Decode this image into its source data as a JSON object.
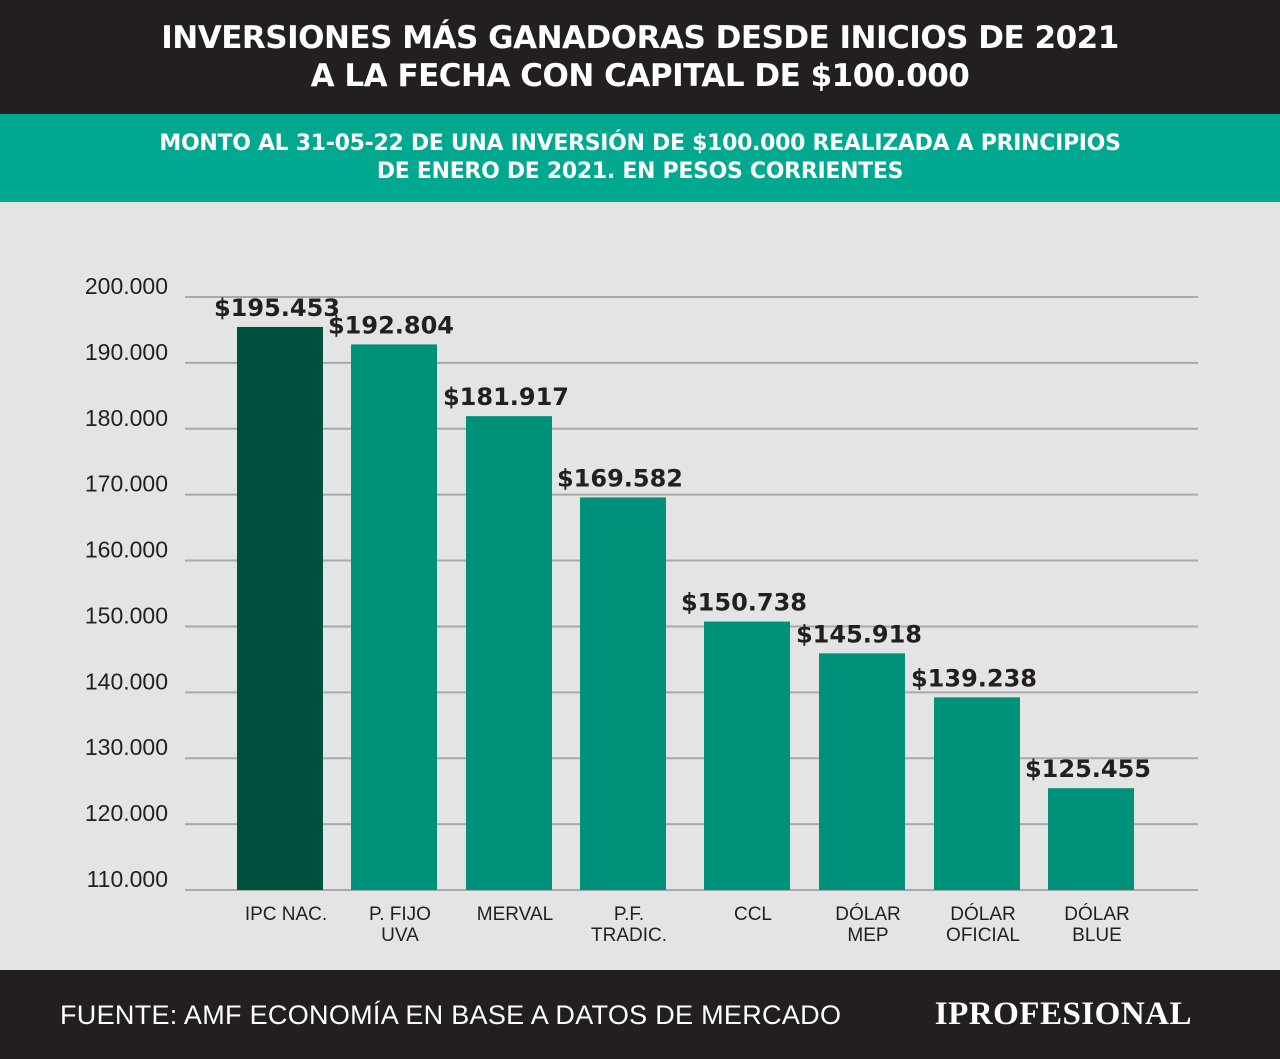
{
  "header": {
    "title_line1": "INVERSIONES MÁS GANADORAS DESDE INICIOS DE 2021",
    "title_line2": "A LA FECHA CON CAPITAL DE $100.000"
  },
  "subheader": {
    "line1": "MONTO AL 31-05-22 DE UNA INVERSIÓN DE $100.000 REALIZADA A PRINCIPIOS",
    "line2": "DE ENERO DE 2021. EN PESOS CORRIENTES"
  },
  "chart_data": {
    "type": "bar",
    "categories": [
      [
        "IPC NAC."
      ],
      [
        "P. FIJO",
        "UVA"
      ],
      [
        "MERVAL"
      ],
      [
        "P.F.",
        "TRADIC."
      ],
      [
        "CCL"
      ],
      [
        "DÓLAR",
        "MEP"
      ],
      [
        "DÓLAR",
        "OFICIAL"
      ],
      [
        "DÓLAR",
        "BLUE"
      ]
    ],
    "values": [
      195453,
      192804,
      181917,
      169582,
      150738,
      145918,
      139238,
      125455
    ],
    "value_labels": [
      "$195.453",
      "$192.804",
      "$181.917",
      "$169.582",
      "$150.738",
      "$145.918",
      "$139.238",
      "$125.455"
    ],
    "bar_colors": [
      "#00503f",
      "#00917a",
      "#00917a",
      "#00917a",
      "#00917a",
      "#00917a",
      "#00917a",
      "#00917a"
    ],
    "ylim": [
      110000,
      200000
    ],
    "yticks": [
      110000,
      120000,
      130000,
      140000,
      150000,
      160000,
      170000,
      180000,
      190000,
      200000
    ],
    "ytick_labels": [
      "110.000",
      "120.000",
      "130.000",
      "140.000",
      "150.000",
      "160.000",
      "170.000",
      "180.000",
      "190.000",
      "200.000"
    ],
    "grid": true
  },
  "footer": {
    "source": "FUENTE: AMF ECONOMÍA EN BASE A DATOS DE MERCADO",
    "logo": "IPROFESIONAL"
  },
  "colors": {
    "header_bg": "#231f20",
    "subheader_bg": "#00a88f",
    "chart_bg": "#e4e4e4",
    "gridline": "#a7a9ac"
  }
}
